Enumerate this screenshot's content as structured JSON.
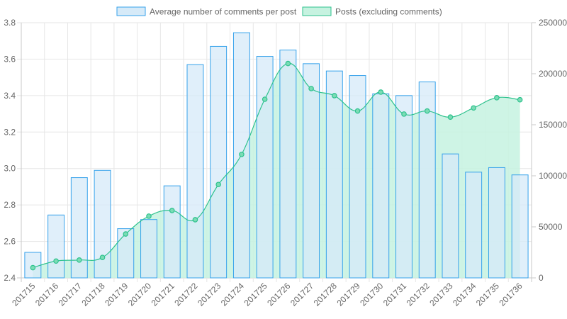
{
  "chart_data": {
    "type": "bar",
    "categories": [
      "201715",
      "201716",
      "201717",
      "201718",
      "201719",
      "201720",
      "201721",
      "201722",
      "201723",
      "201724",
      "201725",
      "201726",
      "201727",
      "201728",
      "201729",
      "201730",
      "201731",
      "201732",
      "201733",
      "201734",
      "201735",
      "201736"
    ],
    "series": [
      {
        "name": "Average number of comments per post",
        "type": "bar",
        "axis": "left",
        "values": [
          2.54,
          2.745,
          2.95,
          2.99,
          2.67,
          2.72,
          2.905,
          3.57,
          3.67,
          3.745,
          3.615,
          3.65,
          3.575,
          3.535,
          3.51,
          3.41,
          3.4,
          3.475,
          3.08,
          2.98,
          3.005,
          2.965
        ],
        "fill": "#d6eaf8",
        "stroke": "#36a2eb"
      },
      {
        "name": "Posts (excluding comments)",
        "type": "area-line",
        "axis": "right",
        "values": [
          10000,
          16500,
          17500,
          20000,
          43000,
          60500,
          66000,
          57000,
          91500,
          121000,
          175000,
          210000,
          185500,
          178500,
          163500,
          182000,
          160500,
          163500,
          157500,
          166500,
          176500,
          174500
        ],
        "fill": "#c6f2e0",
        "stroke": "#2ec28e"
      }
    ],
    "y_left": {
      "min": 2.4,
      "max": 3.8,
      "ticks": [
        "2.4",
        "2.6",
        "2.8",
        "3.0",
        "3.2",
        "3.4",
        "3.6",
        "3.8"
      ]
    },
    "y_right": {
      "min": 0,
      "max": 250000,
      "ticks": [
        "0",
        "50000",
        "100000",
        "150000",
        "200000",
        "250000"
      ]
    },
    "grid": true,
    "legend": "top-center"
  }
}
